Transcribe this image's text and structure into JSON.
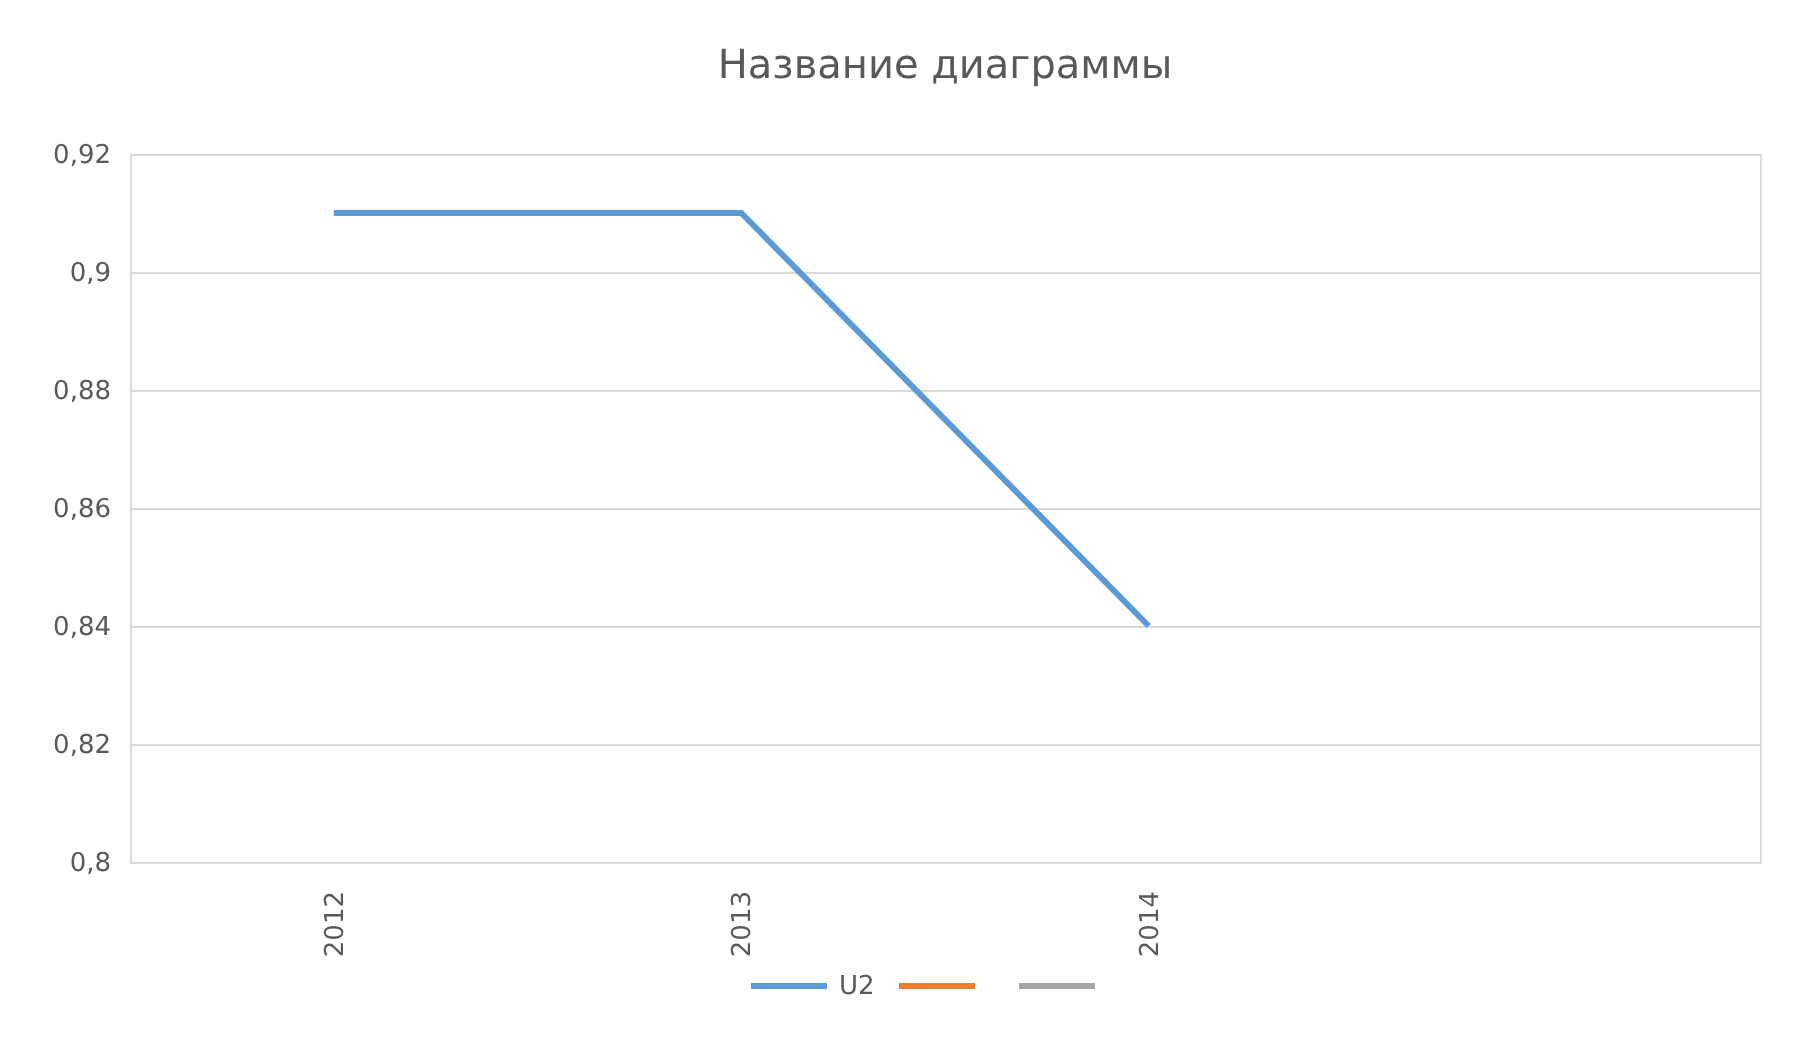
{
  "chart_data": {
    "type": "line",
    "title": "Название диаграммы",
    "categories": [
      "2012",
      "2013",
      "2014",
      null
    ],
    "series": [
      {
        "name": "U2",
        "color": "#5b9bd5",
        "values": [
          0.91,
          0.91,
          0.84,
          null
        ]
      },
      {
        "color": "#ed7d31",
        "values": [
          null,
          null,
          null,
          null
        ]
      },
      {
        "color": "#a5a5a5",
        "values": [
          null,
          null,
          null,
          null
        ]
      }
    ],
    "ylim": [
      0.8,
      0.92
    ],
    "yticks": [
      {
        "value": 0.8,
        "label": "0,8"
      },
      {
        "value": 0.82,
        "label": "0,82"
      },
      {
        "value": 0.84,
        "label": "0,84"
      },
      {
        "value": 0.86,
        "label": "0,86"
      },
      {
        "value": 0.88,
        "label": "0,88"
      },
      {
        "value": 0.9,
        "label": "0,9"
      },
      {
        "value": 0.92,
        "label": "0,92"
      }
    ],
    "grid": "y",
    "legend": "bottom",
    "line_style": "solid",
    "marker": "none"
  }
}
